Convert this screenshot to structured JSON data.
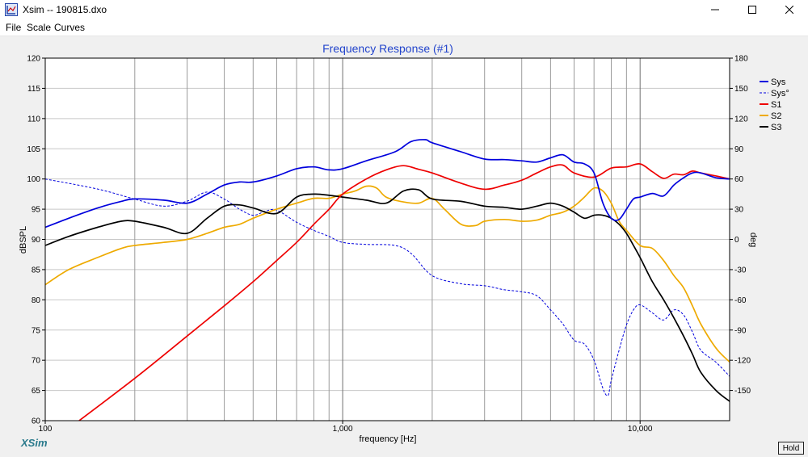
{
  "window": {
    "title": "Xsim -- 190815.dxo"
  },
  "menu": {
    "items": [
      "File",
      "Scale",
      "Curves"
    ]
  },
  "brand": "XSim",
  "hold_label": "Hold",
  "chart_data": {
    "type": "line",
    "title": "Frequency Response (#1)",
    "xlabel": "frequency [Hz]",
    "ylabel": "dBSPL",
    "y2label": "deg",
    "xscale": "log",
    "xlim": [
      100,
      20000
    ],
    "ylim": [
      60,
      120
    ],
    "y2lim": [
      -180,
      180
    ],
    "xticks": [
      100,
      1000,
      10000
    ],
    "xtick_labels": [
      "100",
      "1,000",
      "10,000"
    ],
    "yticks": [
      60,
      65,
      70,
      75,
      80,
      85,
      90,
      95,
      100,
      105,
      110,
      115,
      120
    ],
    "y2ticks": [
      -150,
      -120,
      -90,
      -60,
      -30,
      0,
      30,
      60,
      90,
      120,
      150,
      180
    ],
    "grid": true,
    "legend": "top-right",
    "series": [
      {
        "name": "Sys",
        "axis": "y",
        "color": "#0000dd",
        "dash": false,
        "x": [
          100,
          120,
          150,
          180,
          200,
          250,
          300,
          350,
          400,
          450,
          500,
          600,
          700,
          800,
          900,
          1000,
          1200,
          1500,
          1700,
          1900,
          2000,
          2500,
          3000,
          3500,
          4000,
          4500,
          5000,
          5500,
          6000,
          6500,
          7000,
          7500,
          8000,
          8500,
          9000,
          9500,
          10000,
          11000,
          12000,
          13000,
          14000,
          15000,
          16000,
          18000,
          20000
        ],
        "y": [
          92,
          93.5,
          95.2,
          96.3,
          96.7,
          96.5,
          96,
          97.5,
          99,
          99.5,
          99.5,
          100.5,
          101.7,
          102,
          101.5,
          101.7,
          103,
          104.5,
          106.2,
          106.5,
          106,
          104.5,
          103.3,
          103.2,
          103,
          102.8,
          103.5,
          104,
          102.8,
          102.5,
          101,
          96,
          93.5,
          93.3,
          95,
          96.7,
          97,
          97.6,
          97.2,
          99,
          100.2,
          101,
          101,
          100.2,
          100
        ]
      },
      {
        "name": "Sys°",
        "axis": "y2",
        "color": "#0000dd",
        "dash": true,
        "x": [
          100,
          150,
          200,
          250,
          300,
          350,
          400,
          450,
          500,
          550,
          600,
          700,
          800,
          900,
          1000,
          1200,
          1500,
          1700,
          2000,
          2500,
          3000,
          3500,
          4000,
          4500,
          5000,
          5500,
          6000,
          6500,
          7000,
          7500,
          7800,
          8000,
          8500,
          9000,
          9500,
          10000,
          11000,
          12000,
          13000,
          14000,
          15000,
          16000,
          18000,
          20000
        ],
        "y": [
          60,
          50,
          40,
          33,
          38,
          47,
          40,
          30,
          24,
          28,
          29,
          17,
          9,
          3,
          -3,
          -5,
          -6,
          -14,
          -36,
          -44,
          -46,
          -50,
          -52,
          -56,
          -70,
          -84,
          -100,
          -104,
          -120,
          -148,
          -155,
          -140,
          -110,
          -85,
          -70,
          -65,
          -73,
          -80,
          -70,
          -75,
          -92,
          -110,
          -122,
          -136
        ]
      },
      {
        "name": "S1",
        "axis": "y",
        "color": "#ee0000",
        "dash": false,
        "x": [
          130,
          200,
          300,
          400,
          500,
          600,
          700,
          800,
          900,
          1000,
          1200,
          1400,
          1600,
          1800,
          2000,
          2500,
          3000,
          3500,
          4000,
          4500,
          5000,
          5500,
          6000,
          7000,
          8000,
          9000,
          10000,
          11000,
          12000,
          13000,
          14000,
          15000,
          16000,
          18000,
          20000
        ],
        "y": [
          60,
          67,
          74,
          79,
          83,
          86.5,
          89.5,
          92.5,
          95,
          97.5,
          100,
          101.5,
          102.2,
          101.6,
          101,
          99.3,
          98.3,
          99,
          99.8,
          101,
          102,
          102.3,
          101,
          100.3,
          101.8,
          102,
          102.5,
          101.2,
          100.1,
          100.8,
          100.7,
          101.3,
          101,
          100.5,
          100
        ]
      },
      {
        "name": "S2",
        "axis": "y",
        "color": "#eeaa00",
        "dash": false,
        "x": [
          100,
          120,
          150,
          180,
          200,
          250,
          300,
          350,
          400,
          450,
          500,
          600,
          700,
          800,
          900,
          1000,
          1100,
          1200,
          1300,
          1400,
          1600,
          1800,
          2000,
          2200,
          2500,
          2800,
          3000,
          3500,
          4000,
          4500,
          5000,
          5500,
          6000,
          6500,
          7000,
          7500,
          8000,
          8500,
          9000,
          10000,
          11000,
          12000,
          13000,
          14000,
          15000,
          16000,
          18000,
          20000
        ],
        "y": [
          82.5,
          85,
          87,
          88.5,
          89,
          89.5,
          90,
          91,
          92,
          92.5,
          93.5,
          95,
          96,
          96.8,
          96.8,
          97.5,
          98,
          98.8,
          98.5,
          97,
          96.2,
          96,
          96.8,
          95,
          92.5,
          92.3,
          93,
          93.3,
          93,
          93.2,
          94,
          94.5,
          95.5,
          97,
          98.5,
          98,
          96,
          93,
          91.5,
          89,
          88.5,
          86.5,
          84,
          82,
          79,
          76,
          72,
          69.7
        ]
      },
      {
        "name": "S3",
        "axis": "y",
        "color": "#000000",
        "dash": false,
        "x": [
          100,
          120,
          150,
          180,
          200,
          250,
          300,
          350,
          400,
          450,
          500,
          600,
          700,
          800,
          900,
          1000,
          1200,
          1400,
          1600,
          1800,
          2000,
          2500,
          3000,
          3500,
          4000,
          4500,
          5000,
          5500,
          6000,
          6500,
          7000,
          7500,
          8000,
          8500,
          9000,
          9500,
          10000,
          11000,
          12000,
          13000,
          14000,
          15000,
          16000,
          18000,
          20000
        ],
        "y": [
          89,
          90.5,
          92,
          93,
          93,
          92,
          91,
          93.5,
          95.5,
          95.7,
          95.2,
          94.3,
          97,
          97.5,
          97.3,
          97,
          96.5,
          96,
          98,
          98.2,
          96.7,
          96.3,
          95.5,
          95.3,
          95,
          95.5,
          96,
          95.5,
          94.5,
          93.5,
          94,
          94,
          93.5,
          92.5,
          91,
          89,
          87,
          83,
          80,
          77,
          74,
          71,
          68,
          65,
          63.2
        ]
      }
    ]
  }
}
